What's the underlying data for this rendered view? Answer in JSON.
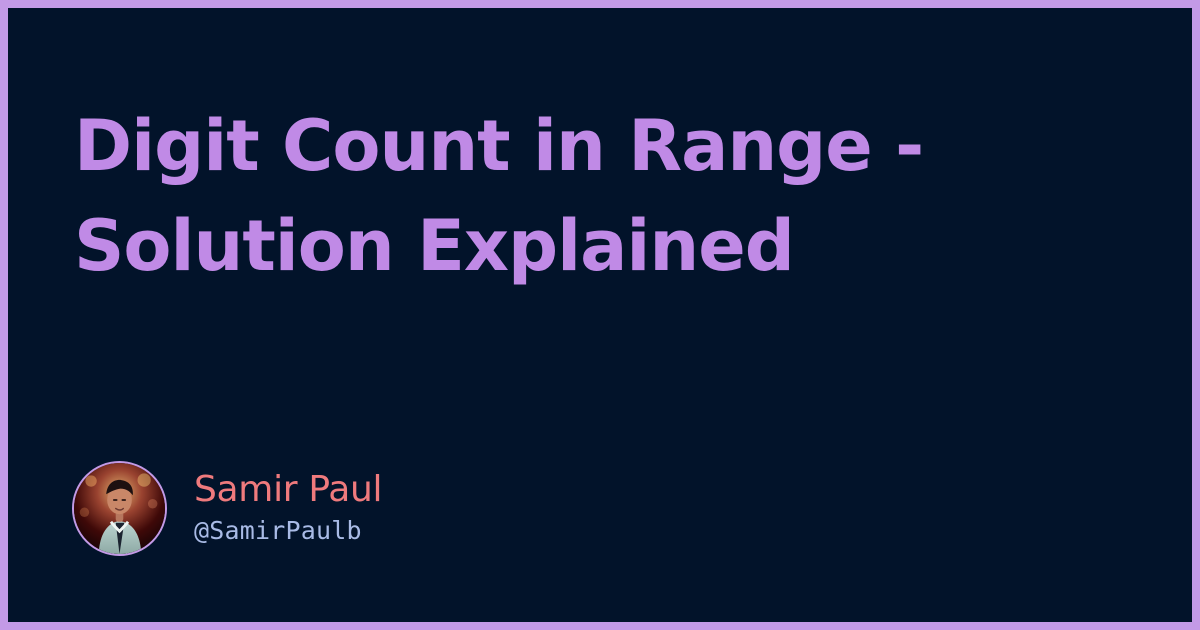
{
  "card": {
    "title": "Digit Count in Range - Solution Explained",
    "colors": {
      "frame": "#c39ae6",
      "background": "#02132a",
      "title": "#c08ae6",
      "author_name": "#ef7a7d",
      "author_handle": "#a9bbe6"
    }
  },
  "author": {
    "name": "Samir Paul",
    "handle": "@SamirPaulb",
    "avatar": {
      "icon": "profile-photo-avatar"
    }
  }
}
